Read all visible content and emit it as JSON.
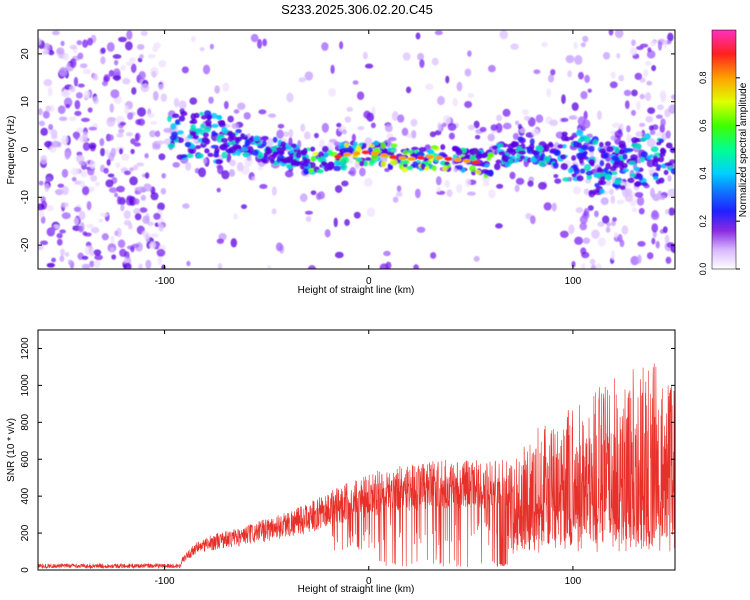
{
  "title": "S233.2025.306.02.20.C45",
  "colors": {
    "snr_line": "#e8302a",
    "axis": "#000000",
    "spectrogram_background": "#ffffff"
  },
  "chart_data": [
    {
      "type": "heatmap",
      "xlabel": "Height of straight line (km)",
      "ylabel": "Frequency (Hz)",
      "xlim": [
        -162,
        150
      ],
      "ylim": [
        -25,
        25
      ],
      "xticks": [
        -100,
        0,
        100
      ],
      "yticks": [
        -20,
        -10,
        0,
        10,
        20
      ],
      "colorbar": {
        "label": "Normalized spectral amplitude",
        "range": [
          0.0,
          1.0
        ],
        "ticks": [
          "0.0",
          "0.2",
          "0.4",
          "0.6",
          "0.8"
        ],
        "colormap": [
          "#ffffff",
          "#b070ff",
          "#5a00e0",
          "#2020ff",
          "#00c8ff",
          "#00ff80",
          "#60ff00",
          "#e8ff00",
          "#ffa000",
          "#ff2020",
          "#ff40c0"
        ]
      },
      "description_series": [
        {
          "name": "main_band_center_hz",
          "x": [
            -100,
            -85,
            -70,
            -55,
            -40,
            -30,
            -20,
            -10,
            0,
            10,
            20,
            30,
            40,
            50,
            58,
            65,
            75,
            85,
            95,
            100,
            108,
            115,
            125,
            140
          ],
          "y": [
            2,
            3,
            2,
            0.5,
            -1,
            -2.5,
            -2,
            -1,
            -0.5,
            -1.5,
            -2,
            -1.5,
            -2,
            -2.5,
            -3,
            -1,
            0,
            -1,
            -1.5,
            -1,
            -2,
            -4,
            -3,
            -2
          ]
        }
      ]
    },
    {
      "type": "line",
      "xlabel": "Height of straight line (km)",
      "ylabel": "SNR (10 * v/v)",
      "xlim": [
        -162,
        150
      ],
      "ylim": [
        0,
        1300
      ],
      "xticks": [
        -100,
        0,
        100
      ],
      "yticks": [
        0,
        200,
        400,
        600,
        800,
        1000,
        1200
      ],
      "series": [
        {
          "name": "SNR envelope",
          "x": [
            -162,
            -100,
            -92,
            -85,
            -75,
            -60,
            -45,
            -30,
            -20,
            -10,
            0,
            10,
            20,
            30,
            40,
            50,
            60,
            63,
            66,
            69,
            72,
            80,
            90,
            100,
            110,
            120,
            130,
            140,
            150
          ],
          "y": [
            20,
            30,
            60,
            150,
            200,
            240,
            300,
            360,
            420,
            480,
            520,
            560,
            580,
            590,
            600,
            600,
            590,
            600,
            620,
            560,
            640,
            760,
            800,
            900,
            1000,
            1050,
            1100,
            1150,
            1000
          ]
        }
      ]
    }
  ]
}
